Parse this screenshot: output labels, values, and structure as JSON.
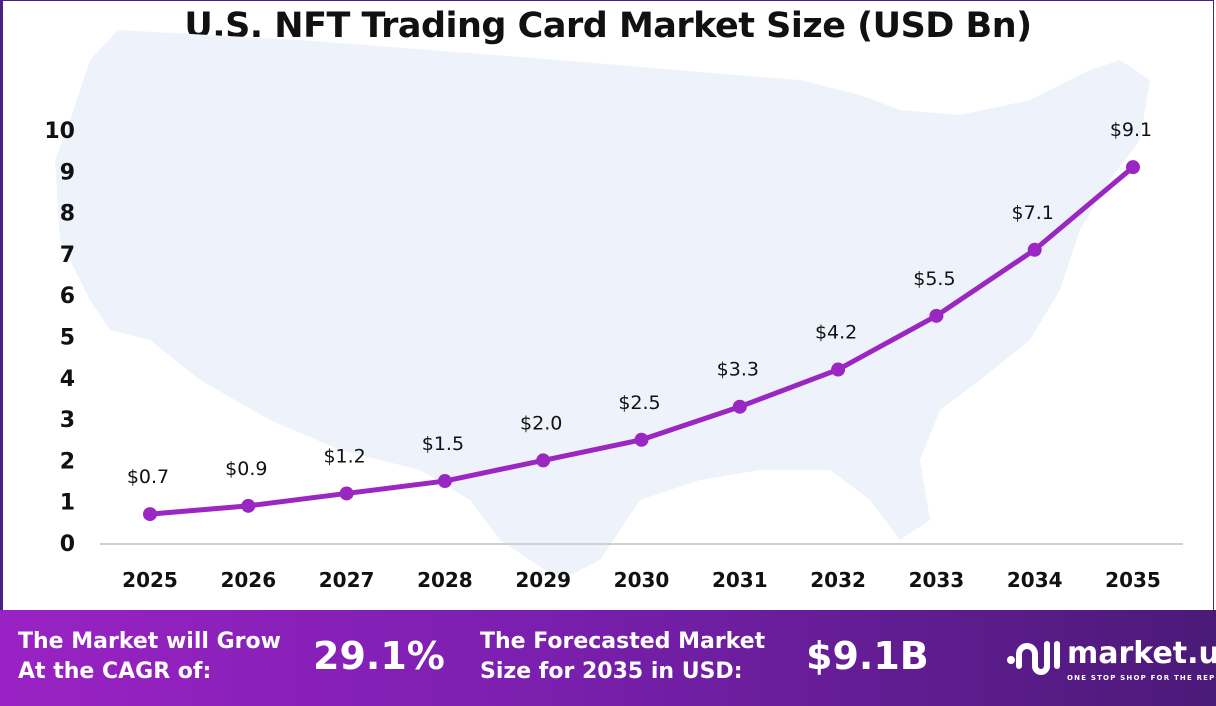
{
  "chart_data": {
    "type": "line",
    "title": "U.S. NFT Trading Card Market Size (USD Bn)",
    "categories": [
      "2025",
      "2026",
      "2027",
      "2028",
      "2029",
      "2030",
      "2031",
      "2032",
      "2033",
      "2034",
      "2035"
    ],
    "values": [
      0.7,
      0.9,
      1.2,
      1.5,
      2.0,
      2.5,
      3.3,
      4.2,
      5.5,
      7.1,
      9.1
    ],
    "data_labels": [
      "$0.7",
      "$0.9",
      "$1.2",
      "$1.5",
      "$2.0",
      "$2.5",
      "$3.3",
      "$4.2",
      "$5.5",
      "$7.1",
      "$9.1"
    ],
    "yticks": [
      "0",
      "1",
      "2",
      "3",
      "4",
      "5",
      "6",
      "7",
      "8",
      "9",
      "10"
    ],
    "ylim": [
      0,
      10
    ],
    "xlabel": "",
    "ylabel": "",
    "grid": false,
    "line_color": "#9b27c2",
    "background": "U.S. map silhouette"
  },
  "banner": {
    "cagr_label": "The Market will Grow At the CAGR of:",
    "cagr_label_line1": "The Market will Grow",
    "cagr_label_line2": "At the CAGR of:",
    "cagr_value": "29.1%",
    "forecast_label_line1": "The Forecasted Market",
    "forecast_label_line2": "Size for 2035 in USD:",
    "forecast_value": "$9.1B",
    "logo_name": "market.us",
    "logo_tagline": "ONE STOP SHOP FOR THE REPORTS"
  }
}
